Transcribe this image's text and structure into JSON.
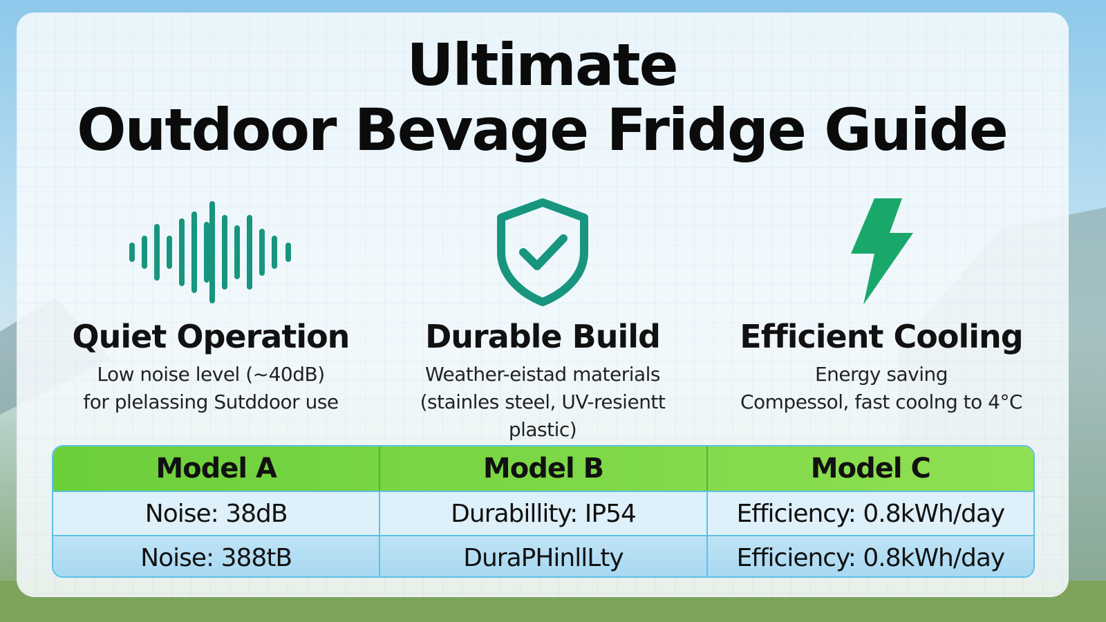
{
  "title": {
    "line1": "Ultimate",
    "line2": "Outdoor Bevage Fridge Guide"
  },
  "features": [
    {
      "icon": "sound-wave-icon",
      "heading": "Quiet Operation",
      "line1": "Low noise level (~40dB)",
      "line2": "for plelassing Sutddoor use"
    },
    {
      "icon": "shield-check-icon",
      "heading": "Durable Build",
      "line1": "Weather-eistad materials",
      "line2": "(stainles steel, UV-resientt plastic)"
    },
    {
      "icon": "lightning-bolt-icon",
      "heading": "Efficient Cooling",
      "line1": "Energy saving",
      "line2": "Compessol, fast coolng to 4°C"
    }
  ],
  "table": {
    "headers": [
      "Model A",
      "Model B",
      "Model C"
    ],
    "rows": [
      [
        "Noise: 38dB",
        "Durabillity: IP54",
        "Efficiency: 0.8kWh/day"
      ],
      [
        "Noise: 388tB",
        "DuraPHinllLty",
        "Efficiency: 0.8kWh/day"
      ]
    ]
  },
  "colors": {
    "teal": "#18957f",
    "green": "#1aa86a",
    "header_green": "#7ad946",
    "table_border": "#5cc0e6"
  }
}
